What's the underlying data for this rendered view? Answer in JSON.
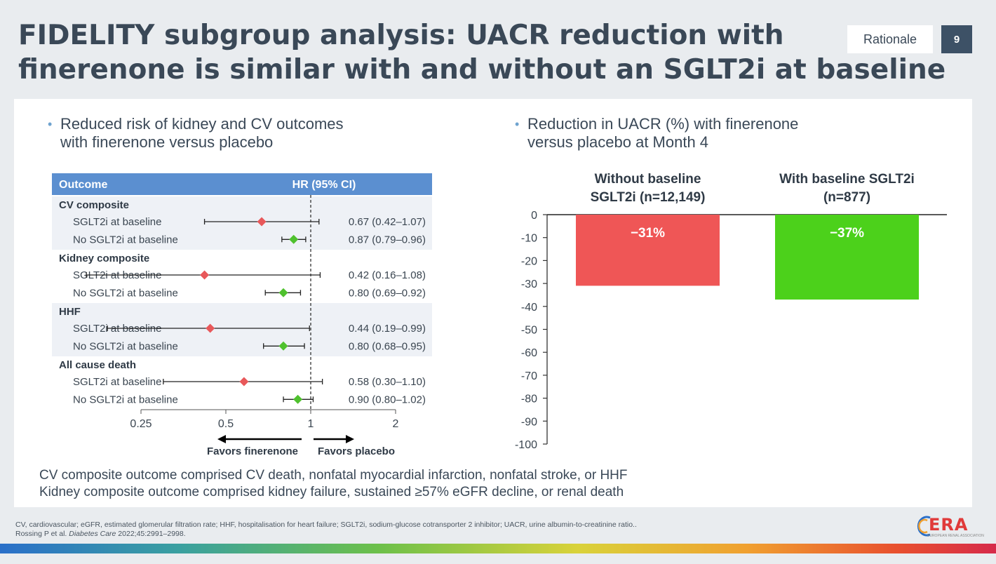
{
  "title_lines": [
    "FIDELITY subgroup analysis: UACR reduction with",
    "finerenone is similar with and without an SGLT2i at baseline"
  ],
  "section_tag": "Rationale",
  "page_number": "9",
  "left_bullet": [
    "Reduced risk of kidney and CV outcomes",
    "with finerenone versus placebo"
  ],
  "right_bullet": [
    "Reduction in UACR (%) with finerenone",
    "versus placebo at Month 4"
  ],
  "footnotes": [
    "CV composite outcome comprised CV death, nonfatal myocardial infarction, nonfatal stroke, or HHF",
    "Kidney composite outcome comprised kidney failure, sustained ≥57% eGFR decline, or renal death"
  ],
  "references": {
    "abbreviations": "CV, cardiovascular; eGFR, estimated glomerular filtration rate; HHF, hospitalisation for heart failure; SGLT2i, sodium-glucose cotransporter 2 inhibitor; UACR, urine albumin-to-creatinine ratio..",
    "citation_prefix": "Rossing P et al. ",
    "citation_journal": "Diabetes Care",
    "citation_suffix": " 2022;45:2991–2998."
  },
  "logo": {
    "text": "ERA",
    "subtitle": "EUROPEAN RENAL ASSOCIATION"
  },
  "colors": {
    "header_blue": "#5b8fd0",
    "band": "#eef1f6",
    "sglt2i_marker": "#e8585a",
    "no_sglt2i_marker": "#4fc12e",
    "bar_without": "#ef5656",
    "bar_with": "#4cd11b"
  },
  "chart_data": [
    {
      "type": "forest",
      "header_outcome": "Outcome",
      "header_hr": "HR (95% CI)",
      "x_scale": "log",
      "x_ticks": [
        0.25,
        0.5,
        1,
        2
      ],
      "x_tick_labels": [
        "0.25",
        "0.5",
        "1",
        "2"
      ],
      "reference_line": 1,
      "favors_left": "Favors finerenone",
      "favors_right": "Favors placebo",
      "groups": [
        {
          "name": "CV composite",
          "rows": [
            {
              "label": "SGLT2i at baseline",
              "hr": 0.67,
              "lo": 0.42,
              "hi": 1.07,
              "text": "0.67 (0.42–1.07)",
              "marker": "sglt2i"
            },
            {
              "label": "No SGLT2i at baseline",
              "hr": 0.87,
              "lo": 0.79,
              "hi": 0.96,
              "text": "0.87 (0.79–0.96)",
              "marker": "no_sglt2i"
            }
          ]
        },
        {
          "name": "Kidney composite",
          "rows": [
            {
              "label": "SGLT2i at baseline",
              "hr": 0.42,
              "lo": 0.16,
              "hi": 1.08,
              "text": "0.42 (0.16–1.08)",
              "marker": "sglt2i"
            },
            {
              "label": "No SGLT2i at baseline",
              "hr": 0.8,
              "lo": 0.69,
              "hi": 0.92,
              "text": "0.80 (0.69–0.92)",
              "marker": "no_sglt2i"
            }
          ]
        },
        {
          "name": "HHF",
          "rows": [
            {
              "label": "SGLT2i at baseline",
              "hr": 0.44,
              "lo": 0.19,
              "hi": 0.99,
              "text": "0.44 (0.19–0.99)",
              "marker": "sglt2i"
            },
            {
              "label": "No SGLT2i at baseline",
              "hr": 0.8,
              "lo": 0.68,
              "hi": 0.95,
              "text": "0.80 (0.68–0.95)",
              "marker": "no_sglt2i"
            }
          ]
        },
        {
          "name": "All cause death",
          "rows": [
            {
              "label": "SGLT2i at baseline",
              "hr": 0.58,
              "lo": 0.3,
              "hi": 1.1,
              "text": "0.58 (0.30–1.10)",
              "marker": "sglt2i"
            },
            {
              "label": "No SGLT2i at baseline",
              "hr": 0.9,
              "lo": 0.8,
              "hi": 1.02,
              "text": "0.90 (0.80–1.02)",
              "marker": "no_sglt2i"
            }
          ]
        }
      ]
    },
    {
      "type": "bar",
      "categories": [
        "Without baseline SGLT2i (n=12,149)",
        "With baseline SGLT2i (n=877)"
      ],
      "category_lines": [
        [
          "Without baseline",
          "SGLT2i (n=12,149)"
        ],
        [
          "With baseline SGLT2i",
          "(n=877)"
        ]
      ],
      "values": [
        -31,
        -37
      ],
      "value_labels": [
        "−31%",
        "−37%"
      ],
      "ylim": [
        -100,
        0
      ],
      "y_ticks": [
        0,
        -10,
        -20,
        -30,
        -40,
        -50,
        -60,
        -70,
        -80,
        -90,
        -100
      ],
      "y_tick_labels": [
        "0",
        "-10",
        "-20",
        "-30",
        "-40",
        "-50",
        "-60",
        "-70",
        "-80",
        "-90",
        "-100"
      ]
    }
  ]
}
